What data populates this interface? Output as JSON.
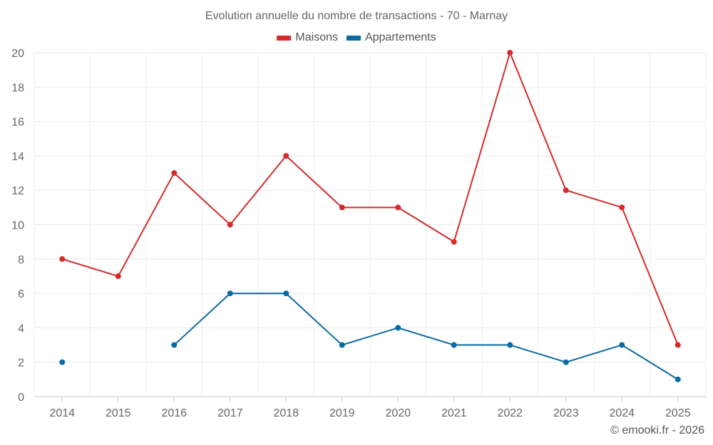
{
  "chart_data": {
    "type": "line",
    "title": "Evolution annuelle du nombre de transactions - 70 - Marnay",
    "categories": [
      "2014",
      "2015",
      "2016",
      "2017",
      "2018",
      "2019",
      "2020",
      "2021",
      "2022",
      "2023",
      "2024",
      "2025"
    ],
    "ylim": [
      0,
      20
    ],
    "yticks": [
      0,
      2,
      4,
      6,
      8,
      10,
      12,
      14,
      16,
      18,
      20
    ],
    "grid": true,
    "legend_position": "top-center",
    "series": [
      {
        "name": "Maisons",
        "color": "#d42b2b",
        "values": [
          8,
          7,
          13,
          10,
          14,
          11,
          11,
          9,
          20,
          12,
          11,
          3
        ]
      },
      {
        "name": "Appartements",
        "color": "#0a6aa1",
        "values": [
          2,
          null,
          3,
          6,
          6,
          3,
          4,
          3,
          3,
          2,
          3,
          1
        ]
      }
    ]
  },
  "credit": "© emooki.fr - 2026"
}
